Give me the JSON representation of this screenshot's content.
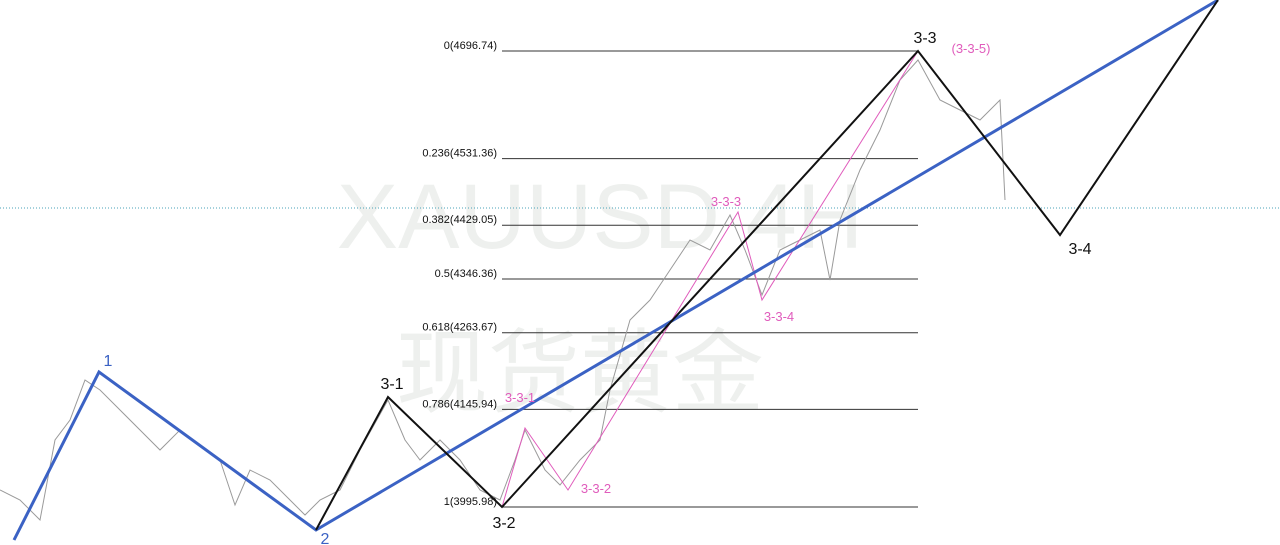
{
  "chart_data": {
    "type": "fibonacci",
    "watermark": [
      "XAUUSD 4H",
      "现货黄金"
    ],
    "ylim": [
      3937.6,
      4775.1
    ],
    "levels": [
      {
        "label": "0(4696.74)",
        "value": 4696.74
      },
      {
        "label": "0.236(4531.36)",
        "value": 4531.36
      },
      {
        "label": "0.382(4429.05)",
        "value": 4429.05
      },
      {
        "label": "0.5(4346.36)",
        "value": 4346.36
      },
      {
        "label": "0.618(4263.67)",
        "value": 4263.67
      },
      {
        "label": "0.786(4145.94)",
        "value": 4145.94
      },
      {
        "label": "1(3995.98)",
        "value": 3995.98
      }
    ],
    "level_color": "#333333",
    "last_price": 4455.4,
    "last_price_color": "#4aa3b8",
    "wave_labels": [
      "1",
      "2",
      "3-1",
      "3-2",
      "3-3",
      "3-4"
    ],
    "sub_wave_labels": [
      "3-3-1",
      "3-3-2",
      "3-3-3",
      "3-3-4",
      "(3-3-5)"
    ]
  }
}
